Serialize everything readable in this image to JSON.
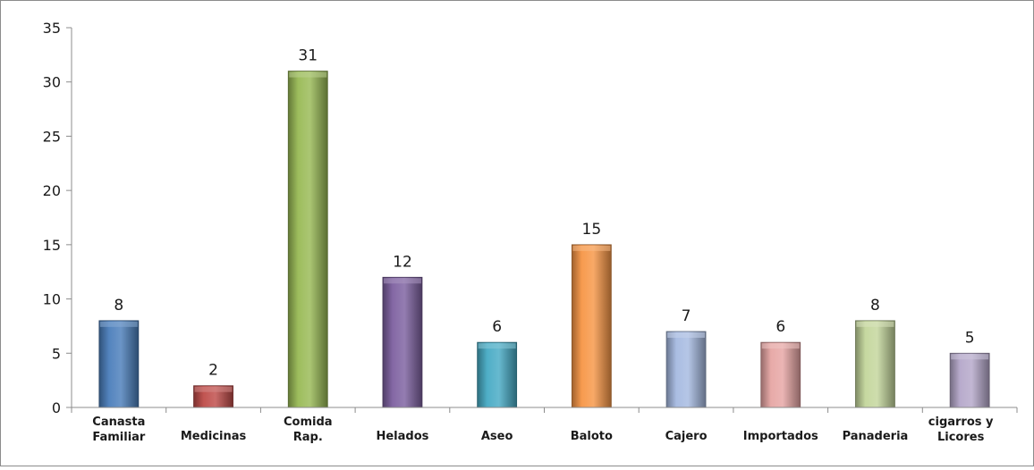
{
  "chart_data": {
    "type": "bar",
    "title": "",
    "xlabel": "",
    "ylabel": "",
    "categories": [
      [
        "Canasta",
        "Familiar"
      ],
      [
        "Medicinas"
      ],
      [
        "Comida",
        "Rap."
      ],
      [
        "Helados"
      ],
      [
        "Aseo"
      ],
      [
        "Baloto"
      ],
      [
        "Cajero"
      ],
      [
        "Importados"
      ],
      [
        "Panaderia"
      ],
      [
        "cigarros y",
        "Licores"
      ]
    ],
    "values": [
      8,
      2,
      31,
      12,
      6,
      15,
      7,
      6,
      8,
      5
    ],
    "ylim": [
      0,
      35
    ],
    "yticks": [
      0,
      5,
      10,
      15,
      20,
      25,
      30,
      35
    ],
    "colors": [
      "#4a7ebb",
      "#be4b48",
      "#98b954",
      "#7d60a0",
      "#46aac4",
      "#f79646",
      "#a5b9e0",
      "#e6a5a3",
      "#c3d69b",
      "#b4a7c9"
    ],
    "grid": false,
    "legend": "none"
  }
}
